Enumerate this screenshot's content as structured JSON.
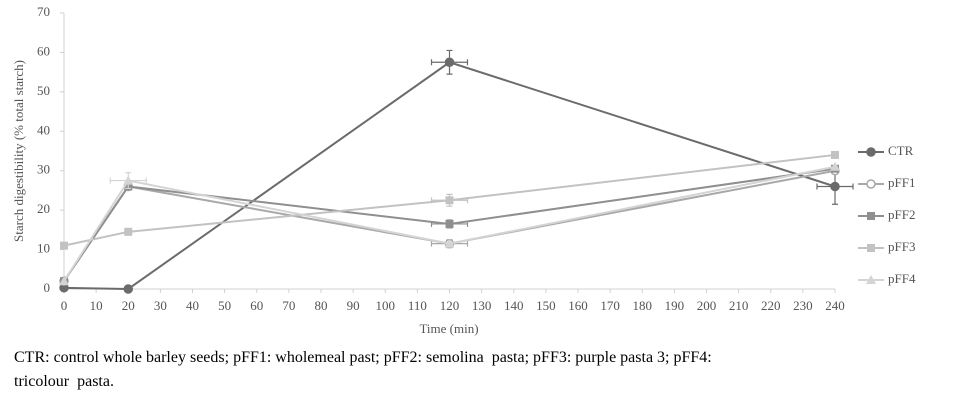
{
  "chart_data": {
    "type": "line",
    "y_label": "Starch digestibility (% total starch)",
    "x_label": "Time (min)",
    "x": [
      0,
      20,
      120,
      240
    ],
    "xlim": [
      0,
      240
    ],
    "xticks": [
      0,
      10,
      20,
      30,
      40,
      50,
      60,
      70,
      80,
      90,
      100,
      110,
      120,
      130,
      140,
      150,
      160,
      170,
      180,
      190,
      200,
      210,
      220,
      230,
      240
    ],
    "ylim": [
      0,
      70
    ],
    "yticks": [
      0,
      10,
      20,
      30,
      40,
      50,
      60,
      70
    ],
    "grid": false,
    "legend": "right",
    "series": [
      {
        "name": "CTR",
        "color": "#6b6b6b",
        "marker": "circle",
        "values": [
          0.3,
          0,
          57.5,
          26
        ],
        "errors": [
          null,
          null,
          3,
          4.5
        ]
      },
      {
        "name": "pFF1",
        "color": "#a8a8a8",
        "marker": "circle-open",
        "values": [
          2,
          26,
          11.5,
          30
        ],
        "errors": [
          null,
          null,
          1,
          null
        ]
      },
      {
        "name": "pFF2",
        "color": "#8f8f8f",
        "marker": "square",
        "values": [
          2,
          26,
          16.5,
          30.5
        ],
        "errors": [
          null,
          null,
          1,
          null
        ]
      },
      {
        "name": "pFF3",
        "color": "#c2c2c2",
        "marker": "square",
        "values": [
          11,
          14.5,
          22.5,
          34
        ],
        "errors": [
          null,
          null,
          1.5,
          null
        ]
      },
      {
        "name": "pFF4",
        "color": "#d4d4d4",
        "marker": "triangle",
        "values": [
          2,
          27.5,
          11.5,
          31
        ],
        "errors": [
          null,
          2,
          null,
          null
        ]
      }
    ]
  },
  "caption": "CTR: control whole barley seeds; pFF1: wholemeal past; pFF2: semolina  pasta; pFF3: purple pasta 3; pFF4: tricolour  pasta."
}
